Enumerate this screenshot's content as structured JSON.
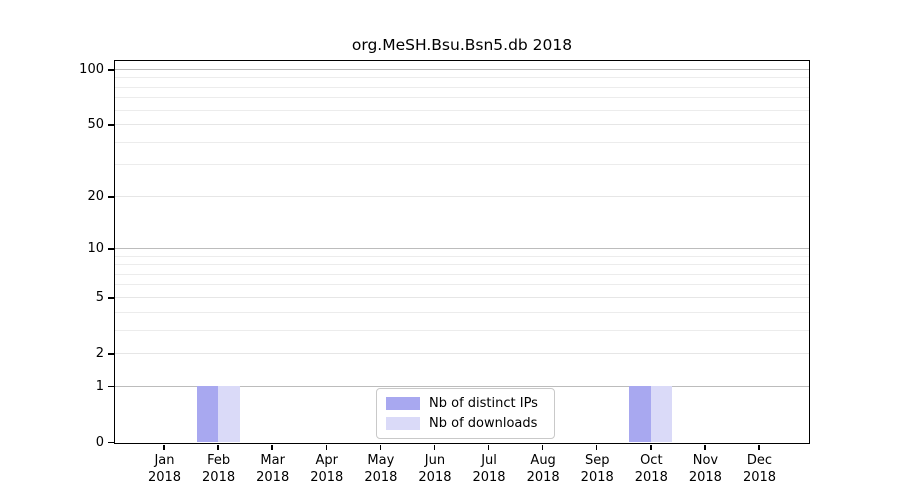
{
  "figure": {
    "title": "org.MeSH.Bsu.Bsn5.db 2018"
  },
  "legend": {
    "items": [
      {
        "label": "Nb of distinct IPs",
        "color": "#a8a8f0"
      },
      {
        "label": "Nb of downloads",
        "color": "#dadaf8"
      }
    ]
  },
  "chart_data": {
    "type": "bar",
    "title": "org.MeSH.Bsu.Bsn5.db 2018",
    "categories": [
      "Jan 2018",
      "Feb 2018",
      "Mar 2018",
      "Apr 2018",
      "May 2018",
      "Jun 2018",
      "Jul 2018",
      "Aug 2018",
      "Sep 2018",
      "Oct 2018",
      "Nov 2018",
      "Dec 2018"
    ],
    "series": [
      {
        "name": "Nb of distinct IPs",
        "color": "#a8a8f0",
        "values": [
          0,
          1,
          0,
          0,
          0,
          0,
          0,
          0,
          0,
          1,
          0,
          0
        ]
      },
      {
        "name": "Nb of downloads",
        "color": "#dadaf8",
        "values": [
          0,
          1,
          0,
          0,
          0,
          0,
          0,
          0,
          0,
          1,
          0,
          0
        ]
      }
    ],
    "y_axis": {
      "scale": "log1p",
      "ticks": [
        0,
        1,
        2,
        5,
        10,
        20,
        50,
        100
      ],
      "top_value": 113,
      "minor_gridlines": [
        3,
        4,
        6,
        7,
        8,
        9,
        30,
        40,
        60,
        70,
        80,
        90
      ],
      "emphasized_gridlines": [
        1,
        10,
        100
      ]
    },
    "x_axis": {
      "year_line": "2018",
      "months": [
        "Jan",
        "Feb",
        "Mar",
        "Apr",
        "May",
        "Jun",
        "Jul",
        "Aug",
        "Sep",
        "Oct",
        "Nov",
        "Dec"
      ]
    },
    "grid": "horizontal",
    "legend_position": "lower center",
    "background": "#ffffff"
  },
  "colors": {
    "frame": "#000000",
    "grid_minor": "#ececec",
    "grid_major": "#e6e6e6",
    "grid_emphasized": "#bcbcbc",
    "text": "#000000"
  }
}
